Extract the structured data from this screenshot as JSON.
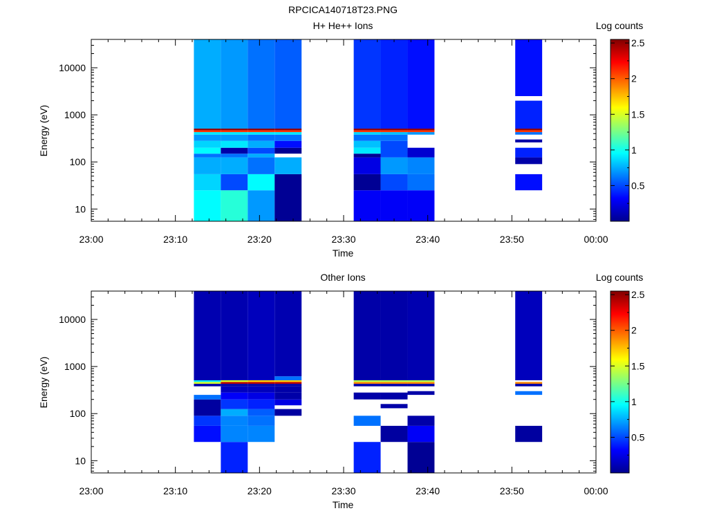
{
  "figure": {
    "title": "RPCICA140718T23.PNG"
  },
  "chart_data": [
    {
      "type": "heatmap",
      "title": "H+ He++ Ions",
      "xlabel": "Time",
      "ylabel": "Energy (eV)",
      "x_ticks": [
        "23:00",
        "23:10",
        "23:20",
        "23:30",
        "23:40",
        "23:50",
        "00:00"
      ],
      "x_range": [
        "23:00",
        "00:00"
      ],
      "y_scale": "log",
      "y_ticks": [
        "10",
        "100",
        "1000",
        "10000"
      ],
      "y_range": [
        5.5,
        40000
      ],
      "colorbar": {
        "label": "Log counts",
        "range": [
          0,
          2.55
        ],
        "ticks": [
          "0.5",
          "1",
          "1.5",
          "2",
          "2.5"
        ]
      },
      "columns": [
        {
          "start": "23:12:12",
          "end": "23:15:24",
          "cells": [
            [
              5.5,
              25,
              0.95
            ],
            [
              25,
              55,
              0.85
            ],
            [
              55,
              125,
              0.75
            ],
            [
              125,
              150,
              0.6
            ],
            [
              150,
              200,
              0.95
            ],
            [
              200,
              280,
              0.85
            ],
            [
              280,
              380,
              0.7
            ],
            [
              380,
              430,
              0.9
            ],
            [
              430,
              470,
              2.1
            ],
            [
              470,
              510,
              2.5
            ],
            [
              510,
              40000,
              0.75
            ]
          ]
        },
        {
          "start": "23:15:24",
          "end": "23:18:36",
          "cells": [
            [
              5.5,
              25,
              1.05
            ],
            [
              25,
              55,
              0.5
            ],
            [
              55,
              125,
              0.75
            ],
            [
              125,
              150,
              0.6
            ],
            [
              150,
              200,
              0.1
            ],
            [
              200,
              280,
              0.9
            ],
            [
              280,
              380,
              0.7
            ],
            [
              380,
              430,
              0.9
            ],
            [
              430,
              470,
              2.1
            ],
            [
              470,
              510,
              2.5
            ],
            [
              510,
              40000,
              0.7
            ]
          ]
        },
        {
          "start": "23:18:36",
          "end": "23:21:48",
          "cells": [
            [
              5.5,
              25,
              0.7
            ],
            [
              25,
              55,
              0.95
            ],
            [
              55,
              125,
              0.6
            ],
            [
              125,
              150,
              0.75
            ],
            [
              150,
              200,
              0.5
            ],
            [
              200,
              280,
              0.75
            ],
            [
              280,
              380,
              0.6
            ],
            [
              380,
              430,
              0.9
            ],
            [
              430,
              470,
              2.1
            ],
            [
              470,
              510,
              2.5
            ],
            [
              510,
              40000,
              0.6
            ]
          ]
        },
        {
          "start": "23:21:48",
          "end": "23:25:00",
          "cells": [
            [
              5.5,
              55,
              0.05
            ],
            [
              55,
              125,
              0.75
            ],
            [
              150,
              200,
              0.05
            ],
            [
              200,
              280,
              0.35
            ],
            [
              280,
              380,
              0.6
            ],
            [
              380,
              430,
              0.9
            ],
            [
              430,
              470,
              2.1
            ],
            [
              470,
              510,
              2.5
            ],
            [
              510,
              40000,
              0.55
            ]
          ]
        },
        {
          "start": "23:31:12",
          "end": "23:34:24",
          "cells": [
            [
              5.5,
              25,
              0.3
            ],
            [
              25,
              55,
              0.05
            ],
            [
              55,
              125,
              0.25
            ],
            [
              125,
              150,
              0.05
            ],
            [
              150,
              200,
              0.9
            ],
            [
              200,
              280,
              0.8
            ],
            [
              280,
              380,
              0.6
            ],
            [
              380,
              430,
              0.85
            ],
            [
              430,
              470,
              2.1
            ],
            [
              470,
              510,
              2.5
            ],
            [
              510,
              40000,
              0.45
            ]
          ]
        },
        {
          "start": "23:34:24",
          "end": "23:37:36",
          "cells": [
            [
              5.5,
              25,
              0.3
            ],
            [
              25,
              55,
              0.5
            ],
            [
              55,
              125,
              0.7
            ],
            [
              125,
              280,
              0.5
            ],
            [
              280,
              380,
              0.6
            ],
            [
              380,
              430,
              0.8
            ],
            [
              430,
              470,
              2.1
            ],
            [
              470,
              510,
              2.5
            ],
            [
              510,
              40000,
              0.4
            ]
          ]
        },
        {
          "start": "23:37:36",
          "end": "23:40:48",
          "cells": [
            [
              5.5,
              25,
              0.3
            ],
            [
              25,
              55,
              0.6
            ],
            [
              55,
              125,
              0.65
            ],
            [
              125,
              200,
              0.2
            ],
            [
              380,
              430,
              0.7
            ],
            [
              430,
              470,
              2.1
            ],
            [
              470,
              510,
              2.5
            ],
            [
              510,
              40000,
              0.35
            ]
          ]
        },
        {
          "start": "23:50:24",
          "end": "23:53:36",
          "cells": [
            [
              25,
              55,
              0.35
            ],
            [
              90,
              125,
              0.1
            ],
            [
              125,
              200,
              0.4
            ],
            [
              260,
              300,
              0.1
            ],
            [
              380,
              430,
              0.6
            ],
            [
              430,
              470,
              2.1
            ],
            [
              470,
              510,
              2.5
            ],
            [
              510,
              2000,
              0.4
            ],
            [
              2500,
              40000,
              0.35
            ]
          ]
        }
      ]
    },
    {
      "type": "heatmap",
      "title": "Other Ions",
      "xlabel": "Time",
      "ylabel": "Energy (eV)",
      "x_ticks": [
        "23:00",
        "23:10",
        "23:20",
        "23:30",
        "23:40",
        "23:50",
        "00:00"
      ],
      "x_range": [
        "23:00",
        "00:00"
      ],
      "y_scale": "log",
      "y_ticks": [
        "10",
        "100",
        "1000",
        "10000"
      ],
      "y_range": [
        5.5,
        40000
      ],
      "colorbar": {
        "label": "Log counts",
        "range": [
          0,
          2.55
        ],
        "ticks": [
          "0.5",
          "1",
          "1.5",
          "2",
          "2.5"
        ]
      },
      "columns": [
        {
          "start": "23:12:12",
          "end": "23:15:24",
          "cells": [
            [
              25,
              55,
              0.35
            ],
            [
              55,
              90,
              0.45
            ],
            [
              90,
              200,
              0.08
            ],
            [
              200,
              250,
              0.6
            ],
            [
              380,
              430,
              0.1
            ],
            [
              430,
              470,
              1.5
            ],
            [
              470,
              510,
              0.9
            ],
            [
              510,
              40000,
              0.12
            ]
          ]
        },
        {
          "start": "23:15:24",
          "end": "23:18:36",
          "cells": [
            [
              5.5,
              25,
              0.4
            ],
            [
              25,
              55,
              0.65
            ],
            [
              55,
              90,
              0.65
            ],
            [
              90,
              125,
              0.75
            ],
            [
              125,
              200,
              0.45
            ],
            [
              200,
              280,
              0.3
            ],
            [
              280,
              380,
              0.15
            ],
            [
              380,
              430,
              0.1
            ],
            [
              430,
              470,
              2.4
            ],
            [
              470,
              510,
              1.5
            ],
            [
              510,
              40000,
              0.12
            ]
          ]
        },
        {
          "start": "23:18:36",
          "end": "23:21:48",
          "cells": [
            [
              25,
              55,
              0.65
            ],
            [
              55,
              90,
              0.6
            ],
            [
              90,
              125,
              0.55
            ],
            [
              125,
              200,
              0.4
            ],
            [
              200,
              280,
              0.25
            ],
            [
              280,
              380,
              0.15
            ],
            [
              380,
              430,
              0.1
            ],
            [
              430,
              470,
              2.4
            ],
            [
              470,
              510,
              1.7
            ],
            [
              510,
              40000,
              0.15
            ]
          ]
        },
        {
          "start": "23:21:48",
          "end": "23:25:00",
          "cells": [
            [
              90,
              125,
              0.08
            ],
            [
              150,
              200,
              0.25
            ],
            [
              200,
              280,
              0.1
            ],
            [
              280,
              380,
              0.1
            ],
            [
              380,
              430,
              0.1
            ],
            [
              430,
              470,
              2.4
            ],
            [
              470,
              510,
              1.7
            ],
            [
              510,
              620,
              0.6
            ],
            [
              620,
              40000,
              0.12
            ]
          ]
        },
        {
          "start": "23:31:12",
          "end": "23:34:24",
          "cells": [
            [
              5.5,
              25,
              0.4
            ],
            [
              55,
              90,
              0.6
            ],
            [
              200,
              280,
              0.1
            ],
            [
              380,
              430,
              0.1
            ],
            [
              430,
              470,
              1.9
            ],
            [
              470,
              510,
              1.4
            ],
            [
              510,
              40000,
              0.1
            ]
          ]
        },
        {
          "start": "23:34:24",
          "end": "23:37:36",
          "cells": [
            [
              25,
              55,
              0.08
            ],
            [
              130,
              160,
              0.1
            ],
            [
              200,
              280,
              0.1
            ],
            [
              380,
              430,
              0.1
            ],
            [
              430,
              470,
              1.9
            ],
            [
              470,
              510,
              1.4
            ],
            [
              510,
              40000,
              0.1
            ]
          ]
        },
        {
          "start": "23:37:36",
          "end": "23:40:48",
          "cells": [
            [
              5.5,
              25,
              0.05
            ],
            [
              25,
              55,
              0.3
            ],
            [
              55,
              90,
              0.1
            ],
            [
              250,
              300,
              0.1
            ],
            [
              380,
              430,
              0.1
            ],
            [
              430,
              470,
              1.9
            ],
            [
              470,
              510,
              1.4
            ],
            [
              510,
              40000,
              0.12
            ]
          ]
        },
        {
          "start": "23:50:24",
          "end": "23:53:36",
          "cells": [
            [
              25,
              55,
              0.08
            ],
            [
              250,
              300,
              0.6
            ],
            [
              380,
              430,
              0.1
            ],
            [
              430,
              470,
              1.9
            ],
            [
              510,
              40000,
              0.15
            ]
          ]
        }
      ]
    }
  ]
}
